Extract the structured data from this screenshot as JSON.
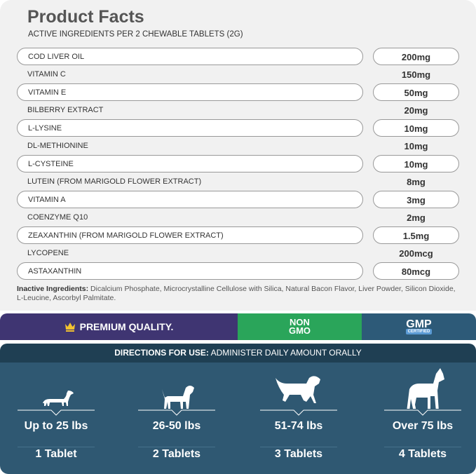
{
  "title": "Product Facts",
  "subtitle": "ACTIVE INGREDIENTS PER 2 CHEWABLE TABLETS (2G)",
  "ingredients": [
    {
      "name": "COD LIVER OIL",
      "amount": "200mg"
    },
    {
      "name": "VITAMIN C",
      "amount": "150mg"
    },
    {
      "name": "VITAMIN E",
      "amount": "50mg"
    },
    {
      "name": "BILBERRY EXTRACT",
      "amount": "20mg"
    },
    {
      "name": "L-LYSINE",
      "amount": "10mg"
    },
    {
      "name": "DL-METHIONINE",
      "amount": "10mg"
    },
    {
      "name": "L-CYSTEINE",
      "amount": "10mg"
    },
    {
      "name": "LUTEIN (FROM MARIGOLD FLOWER EXTRACT)",
      "amount": "8mg"
    },
    {
      "name": "VITAMIN A",
      "amount": "3mg"
    },
    {
      "name": "COENZYME Q10",
      "amount": "2mg"
    },
    {
      "name": "ZEAXANTHIN (FROM MARIGOLD FLOWER EXTRACT)",
      "amount": "1.5mg"
    },
    {
      "name": "LYCOPENE",
      "amount": "200mcg"
    },
    {
      "name": "ASTAXANTHIN",
      "amount": "80mcg"
    }
  ],
  "inactive": {
    "label": "Inactive Ingredients:",
    "text": " Dicalcium Phosphate, Microcrystalline Cellulose with Silica, Natural Bacon Flavor, Liver Powder, Silicon Dioxide, L-Leucine, Ascorbyl Palmitate."
  },
  "badges": {
    "premium": "PREMIUM QUALITY.",
    "non": "NON",
    "gmo": "GMO",
    "gmp": "GMP",
    "certified": "CERTIFIED",
    "colors": {
      "premium": "#3f3572",
      "nongmo": "#2aa55a",
      "gmp": "#2d5a78"
    }
  },
  "directions": {
    "label": "DIRECTIONS FOR USE:",
    "text": " ADMINISTER DAILY AMOUNT ORALLY"
  },
  "dosage": [
    {
      "weight": "Up to 25 lbs",
      "tablets": "1 Tablet",
      "icon": "dachshund-icon"
    },
    {
      "weight": "26-50 lbs",
      "tablets": "2 Tablets",
      "icon": "small-dog-icon"
    },
    {
      "weight": "51-74 lbs",
      "tablets": "3 Tablets",
      "icon": "retriever-icon"
    },
    {
      "weight": "Over 75 lbs",
      "tablets": "4 Tablets",
      "icon": "boxer-icon"
    }
  ]
}
